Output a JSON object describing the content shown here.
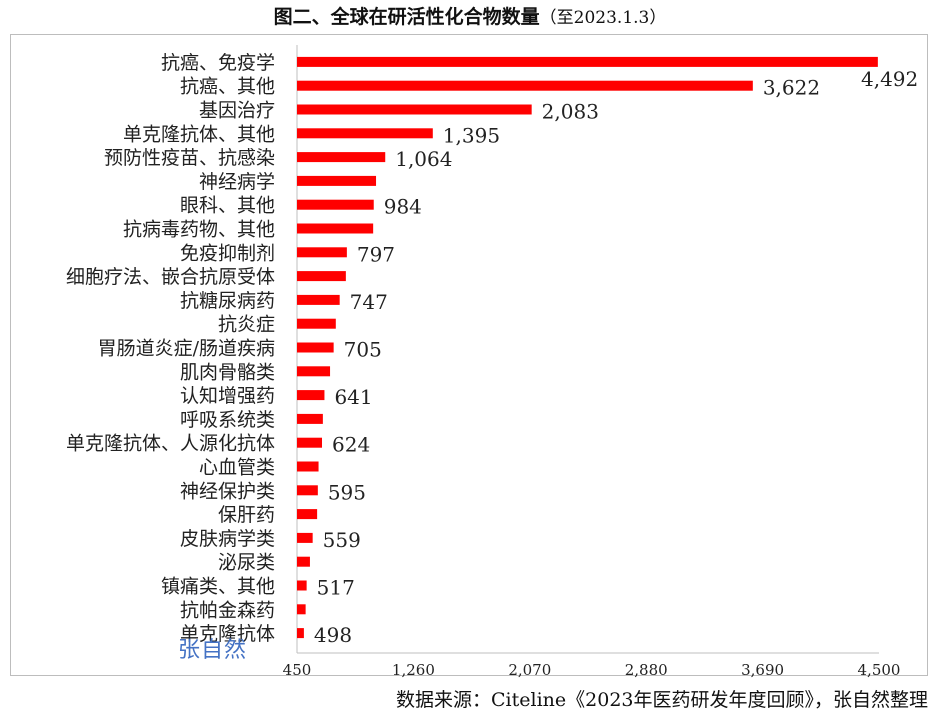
{
  "title": {
    "main": "图二、全球在研活性化合物数量",
    "date": "（至2023.1.3）"
  },
  "source": "数据来源：Citeline《2023年医药研发年度回顾》，张自然整理",
  "watermark": "张自然",
  "colors": {
    "bar": "#ff0000",
    "axis": "#bfbfbf",
    "text": "#222222"
  },
  "chart_data": {
    "type": "bar",
    "orientation": "horizontal",
    "xlim": [
      450,
      4500
    ],
    "xticks": [
      450,
      1260,
      2070,
      2880,
      3690,
      4500
    ],
    "xtick_labels": [
      "450",
      "1,260",
      "2,070",
      "2,880",
      "3,690",
      "4,500"
    ],
    "grid": false,
    "categories": [
      "抗癌、免疫学",
      "抗癌、其他",
      "基因治疗",
      "单克隆抗体、其他",
      "预防性疫苗、抗感染",
      "神经病学",
      "眼科、其他",
      "抗病毒药物、其他",
      "免疫抑制剂",
      "细胞疗法、嵌合抗原受体",
      "抗糖尿病药",
      "抗炎症",
      "胃肠道炎症/肠道疾病",
      "肌肉骨骼类",
      "认知增强药",
      "呼吸系统类",
      "单克隆抗体、人源化抗体",
      "心血管类",
      "神经保护类",
      "保肝药",
      "皮肤病学类",
      "泌尿类",
      "镇痛类、其他",
      "抗帕金森药",
      "单克隆抗体"
    ],
    "values": [
      4492,
      3622,
      2083,
      1395,
      1064,
      1000,
      984,
      980,
      797,
      790,
      747,
      720,
      705,
      680,
      641,
      630,
      624,
      600,
      595,
      590,
      559,
      540,
      517,
      510,
      498
    ],
    "value_labels": [
      "4,492",
      "3,622",
      "2,083",
      "1,395",
      "1,064",
      "",
      "984",
      "",
      "797",
      "",
      "747",
      "",
      "705",
      "",
      "641",
      "",
      "624",
      "",
      "595",
      "",
      "559",
      "",
      "517",
      "",
      "498"
    ]
  }
}
